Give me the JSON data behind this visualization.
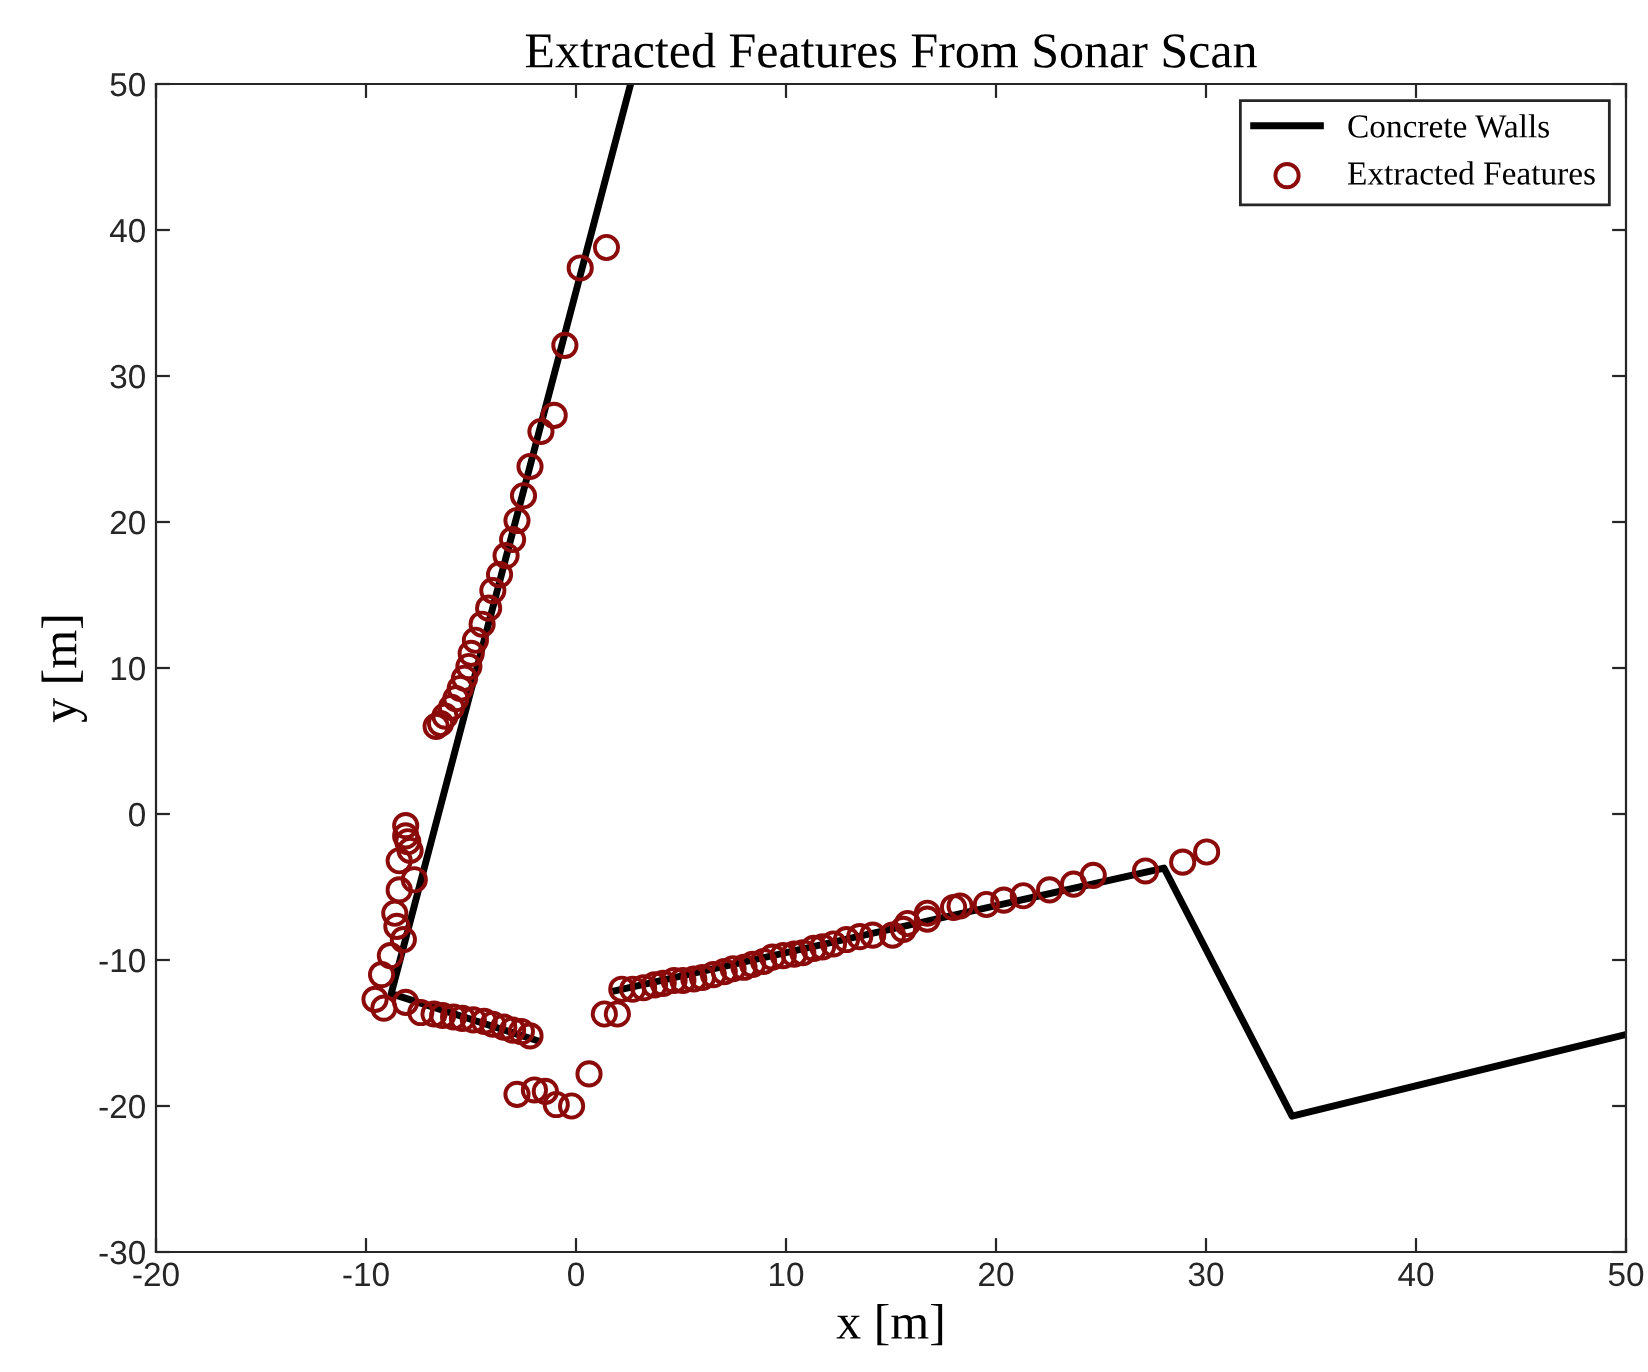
{
  "chart_data": {
    "type": "scatter",
    "title": "Extracted Features From Sonar Scan",
    "xlabel": "x [m]",
    "ylabel": "y [m]",
    "xlim": [
      -20,
      50
    ],
    "ylim": [
      -30,
      50
    ],
    "xticks": [
      -20,
      -10,
      0,
      10,
      20,
      30,
      40,
      50
    ],
    "yticks": [
      -30,
      -20,
      -10,
      0,
      10,
      20,
      30,
      40,
      50
    ],
    "grid": false,
    "legend": "top right",
    "series": [
      {
        "name": "Concrete Walls",
        "type": "line",
        "color": "#000000",
        "line_style": "solid",
        "marker": "none",
        "x": [
          2.6,
          -8.8,
          -1.9,
          null,
          1.9,
          28.0,
          34.1,
          50
        ],
        "values": [
          50,
          -12.3,
          -15.5,
          null,
          -12.1,
          -3.7,
          -20.7,
          -15.1
        ]
      },
      {
        "name": "Extracted Features",
        "type": "scatter",
        "color": "#8b0a0a",
        "marker": "circle",
        "x": [
          1.45,
          0.2,
          -0.53,
          -1.04,
          -1.67,
          -2.19,
          -2.5,
          -2.81,
          -3.02,
          -3.33,
          -3.64,
          -3.96,
          -4.16,
          -4.47,
          -4.79,
          -4.99,
          -5.1,
          -5.31,
          -5.51,
          -5.72,
          -5.93,
          -6.24,
          -6.45,
          -6.66,
          -8.11,
          -8.11,
          -8.01,
          -7.9,
          -8.42,
          -7.7,
          -8.42,
          -8.63,
          -8.53,
          -8.22,
          -8.84,
          -9.26,
          -9.57,
          -9.15,
          -8.11,
          -7.39,
          -6.76,
          -6.35,
          -5.83,
          -5.41,
          -4.89,
          -4.37,
          -3.96,
          -3.44,
          -3.02,
          -2.6,
          -2.19,
          -2.81,
          -1.98,
          -1.46,
          -0.94,
          -0.21,
          0.62,
          1.35,
          1.97,
          2.18,
          2.7,
          3.22,
          3.74,
          4.15,
          4.67,
          5.09,
          5.61,
          6.02,
          6.54,
          7.06,
          7.48,
          8.0,
          8.41,
          8.93,
          9.35,
          9.87,
          10.39,
          10.8,
          11.32,
          11.74,
          12.26,
          12.88,
          13.51,
          14.13,
          15.07,
          15.59,
          15.79,
          16.73,
          16.73,
          17.98,
          18.29,
          19.54,
          20.37,
          21.3,
          22.55,
          23.69,
          24.63,
          27.12,
          28.89,
          30.03
        ],
        "values": [
          38.8,
          37.4,
          32.1,
          27.3,
          26.2,
          23.8,
          21.8,
          20.1,
          18.8,
          17.7,
          16.4,
          15.3,
          14.1,
          13.0,
          11.9,
          11.0,
          10.1,
          9.3,
          8.6,
          7.9,
          7.3,
          6.7,
          6.2,
          6.0,
          -0.8,
          -1.5,
          -1.9,
          -2.5,
          -3.2,
          -4.5,
          -5.2,
          -6.8,
          -7.7,
          -8.6,
          -9.7,
          -11.0,
          -12.7,
          -13.3,
          -12.9,
          -13.6,
          -13.7,
          -13.8,
          -13.9,
          -14.0,
          -14.1,
          -14.2,
          -14.4,
          -14.6,
          -14.8,
          -14.9,
          -15.2,
          -19.2,
          -18.9,
          -19.0,
          -19.9,
          -20.0,
          -17.8,
          -13.7,
          -13.7,
          -12.0,
          -12.0,
          -11.9,
          -11.7,
          -11.6,
          -11.4,
          -11.4,
          -11.3,
          -11.2,
          -11.0,
          -10.8,
          -10.6,
          -10.5,
          -10.3,
          -10.1,
          -9.8,
          -9.7,
          -9.6,
          -9.5,
          -9.2,
          -9.1,
          -8.9,
          -8.6,
          -8.4,
          -8.3,
          -8.3,
          -7.9,
          -7.5,
          -7.2,
          -6.8,
          -6.4,
          -6.3,
          -6.2,
          -5.9,
          -5.6,
          -5.2,
          -4.8,
          -4.2,
          -3.9,
          -3.3,
          -2.6
        ]
      }
    ]
  }
}
